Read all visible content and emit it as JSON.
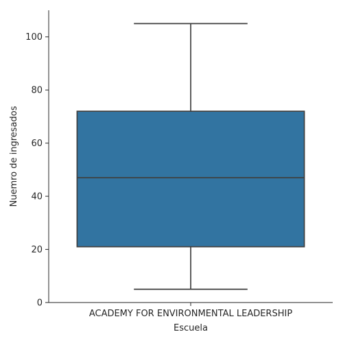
{
  "chart_data": {
    "type": "box",
    "categories": [
      "ACADEMY FOR ENVIRONMENTAL LEADERSHIP"
    ],
    "boxes": [
      {
        "category": "ACADEMY FOR ENVIRONMENTAL LEADERSHIP",
        "whisker_low": 5,
        "q1": 21,
        "median": 47,
        "q3": 72,
        "whisker_high": 105
      }
    ],
    "xlabel": "Escuela",
    "ylabel": "Nuemro de ingresados",
    "ylim": [
      0,
      110
    ],
    "yticks": [
      0,
      20,
      40,
      60,
      80,
      100
    ],
    "grid": false,
    "colors": {
      "box": "#3274a1",
      "line": "#3f3f3f",
      "axis": "#262626"
    }
  }
}
